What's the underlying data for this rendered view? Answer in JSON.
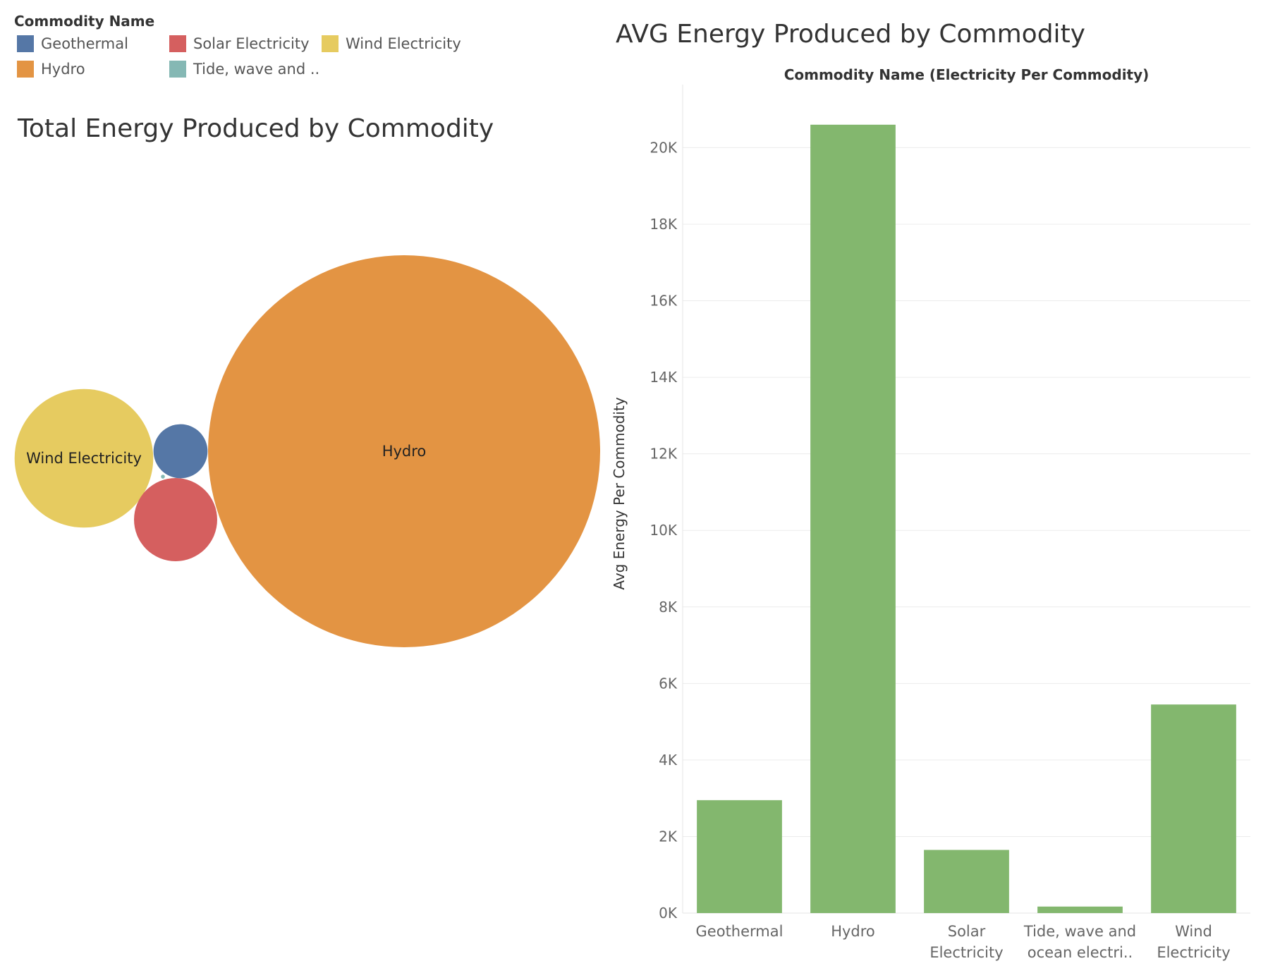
{
  "legend": {
    "title": "Commodity Name",
    "items": [
      {
        "label": "Geothermal",
        "color": "#5577a6"
      },
      {
        "label": "Hydro",
        "color": "#e39443"
      },
      {
        "label": "Solar Electricity",
        "color": "#d55f5f"
      },
      {
        "label": "Tide, wave and ..",
        "color": "#85b8b4"
      },
      {
        "label": "Wind Electricity",
        "color": "#e6cb60"
      }
    ]
  },
  "chart_data": [
    {
      "type": "bubble",
      "title": "Total Energy Produced by Commodity",
      "bubbles": [
        {
          "name": "Hydro",
          "label": "Hydro",
          "color": "#e39443",
          "relative_size": 1.0
        },
        {
          "name": "Wind Electricity",
          "label": "Wind Electricity",
          "color": "#e6cb60",
          "relative_size": 0.125
        },
        {
          "name": "Solar Electricity",
          "label": "",
          "color": "#d55f5f",
          "relative_size": 0.045
        },
        {
          "name": "Geothermal",
          "label": "",
          "color": "#5577a6",
          "relative_size": 0.019
        },
        {
          "name": "Tide, wave and ocean electricity",
          "label": "",
          "color": "#85b8b4",
          "relative_size": 0.0001
        }
      ]
    },
    {
      "type": "bar",
      "title": "AVG Energy Produced by Commodity",
      "header": "Commodity Name (Electricity Per Commodity)",
      "ylabel": "Avg Energy Per Commodity",
      "xlabel": "",
      "categories": [
        [
          "Geothermal"
        ],
        [
          "Hydro"
        ],
        [
          "Solar",
          "Electricity"
        ],
        [
          "Tide, wave and",
          "ocean electri.."
        ],
        [
          "Wind",
          "Electricity"
        ]
      ],
      "values": [
        2950,
        20600,
        1650,
        170,
        5450
      ],
      "color": "#83b76e",
      "ylim": [
        0,
        21500
      ],
      "yticks": [
        0,
        2000,
        4000,
        6000,
        8000,
        10000,
        12000,
        14000,
        16000,
        18000,
        20000
      ],
      "ytick_labels": [
        "0K",
        "2K",
        "4K",
        "6K",
        "8K",
        "10K",
        "12K",
        "14K",
        "16K",
        "18K",
        "20K"
      ],
      "grid": true
    }
  ]
}
